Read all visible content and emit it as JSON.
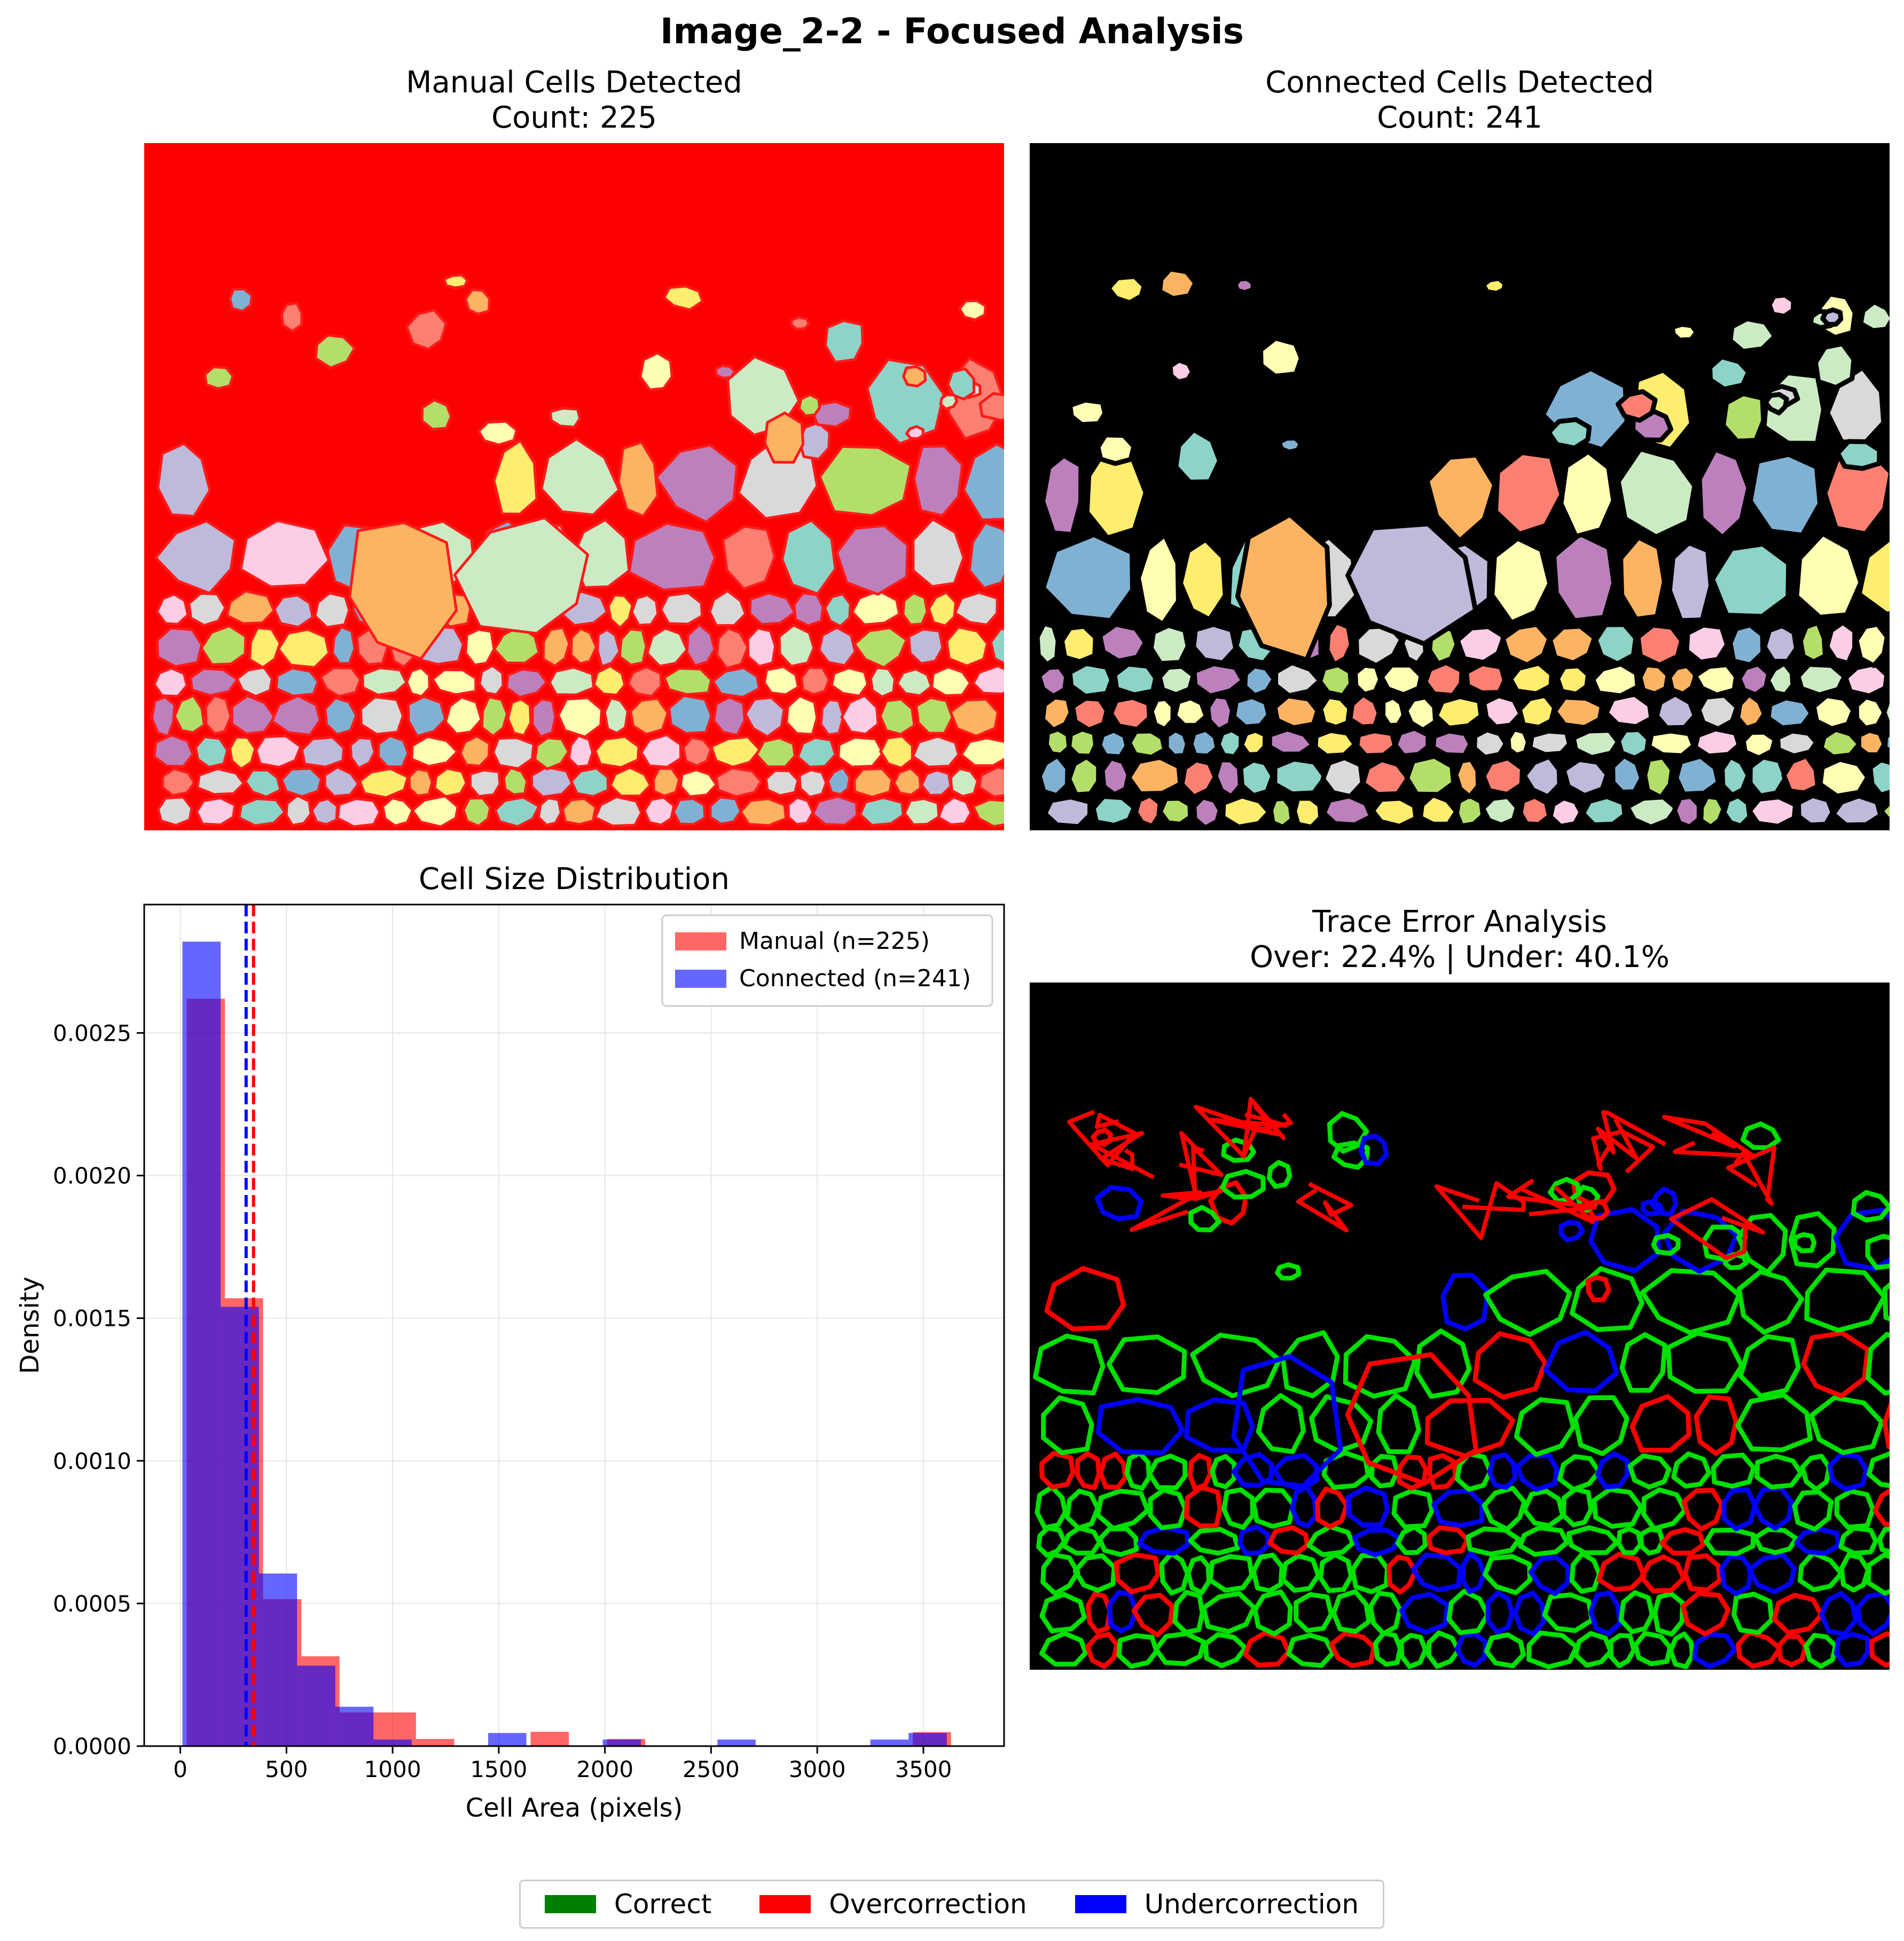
{
  "figure": {
    "suptitle": "Image_2-2 - Focused Analysis"
  },
  "panels": {
    "manual": {
      "title_line1": "Manual Cells Detected",
      "title_line2": "Count: 225",
      "background": "#ff0000",
      "border_color": "#ff1a1a"
    },
    "connected": {
      "title_line1": "Connected Cells Detected",
      "title_line2": "Count: 241",
      "background": "#000000",
      "border_color": "#000000"
    },
    "trace": {
      "title_line1": "Trace Error Analysis",
      "title_line2": "Over: 22.4% | Under: 40.1%",
      "background": "#000000"
    }
  },
  "cell_palette": [
    "#8dd3c7",
    "#ffffb3",
    "#bebada",
    "#fb8072",
    "#80b1d3",
    "#fdb462",
    "#b3de69",
    "#fccde5",
    "#d9d9d9",
    "#bc80bd",
    "#ccebc5",
    "#ffed6f"
  ],
  "bottom_legend": {
    "items": [
      {
        "label": "Correct",
        "color": "#008000"
      },
      {
        "label": "Overcorrection",
        "color": "#ff0000"
      },
      {
        "label": "Undercorrection",
        "color": "#0000ff"
      }
    ]
  },
  "chart_data": {
    "type": "histogram",
    "title": "Cell Size Distribution",
    "xlabel": "Cell Area (pixels)",
    "ylabel": "Density",
    "xlim": [
      -170,
      3880
    ],
    "ylim": [
      0,
      0.00295
    ],
    "xticks": [
      0,
      500,
      1000,
      1500,
      2000,
      2500,
      3000,
      3500
    ],
    "xtick_labels": [
      "0",
      "500",
      "1000",
      "1500",
      "2000",
      "2500",
      "3000",
      "3500"
    ],
    "yticks": [
      0,
      0.0005,
      0.001,
      0.0015,
      0.002,
      0.0025
    ],
    "ytick_labels": [
      "0.0000",
      "0.0005",
      "0.0010",
      "0.0015",
      "0.0020",
      "0.0025"
    ],
    "grid": true,
    "legend_position": "upper right",
    "series": [
      {
        "name": "Manual (n=225)",
        "color": "#ff0000",
        "alpha": 0.6,
        "bin_edges": [
          30,
          210,
          390,
          570,
          750,
          930,
          1110,
          1290,
          1470,
          1650,
          1830,
          2010,
          2190,
          2370,
          2550,
          2730,
          2910,
          3090,
          3270,
          3450,
          3630
        ],
        "density": [
          0.00262,
          0.00157,
          0.000515,
          0.000315,
          0.000118,
          0.000118,
          2.5e-05,
          0.0,
          0.0,
          5e-05,
          0.0,
          2.5e-05,
          0.0,
          0.0,
          0.0,
          0.0,
          0.0,
          0.0,
          0.0,
          4.9e-05
        ],
        "mean": 345
      },
      {
        "name": "Connected (n=241)",
        "color": "#0000ff",
        "alpha": 0.6,
        "bin_edges": [
          10,
          190,
          370,
          550,
          730,
          910,
          1090,
          1270,
          1450,
          1630,
          1810,
          1990,
          2170,
          2350,
          2530,
          2710,
          2890,
          3070,
          3250,
          3430,
          3610
        ],
        "density": [
          0.00282,
          0.00154,
          0.000605,
          0.000282,
          0.000138,
          2.3e-05,
          0.0,
          0.0,
          4.6e-05,
          0.0,
          0.0,
          2.3e-05,
          0.0,
          0.0,
          2.3e-05,
          0.0,
          0.0,
          0.0,
          2.3e-05,
          4.6e-05
        ],
        "mean": 310
      }
    ],
    "mean_lines": [
      {
        "series": "Connected (n=241)",
        "x": 310,
        "color": "#0000ff"
      },
      {
        "series": "Manual (n=225)",
        "x": 345,
        "color": "#ff0000"
      }
    ]
  }
}
